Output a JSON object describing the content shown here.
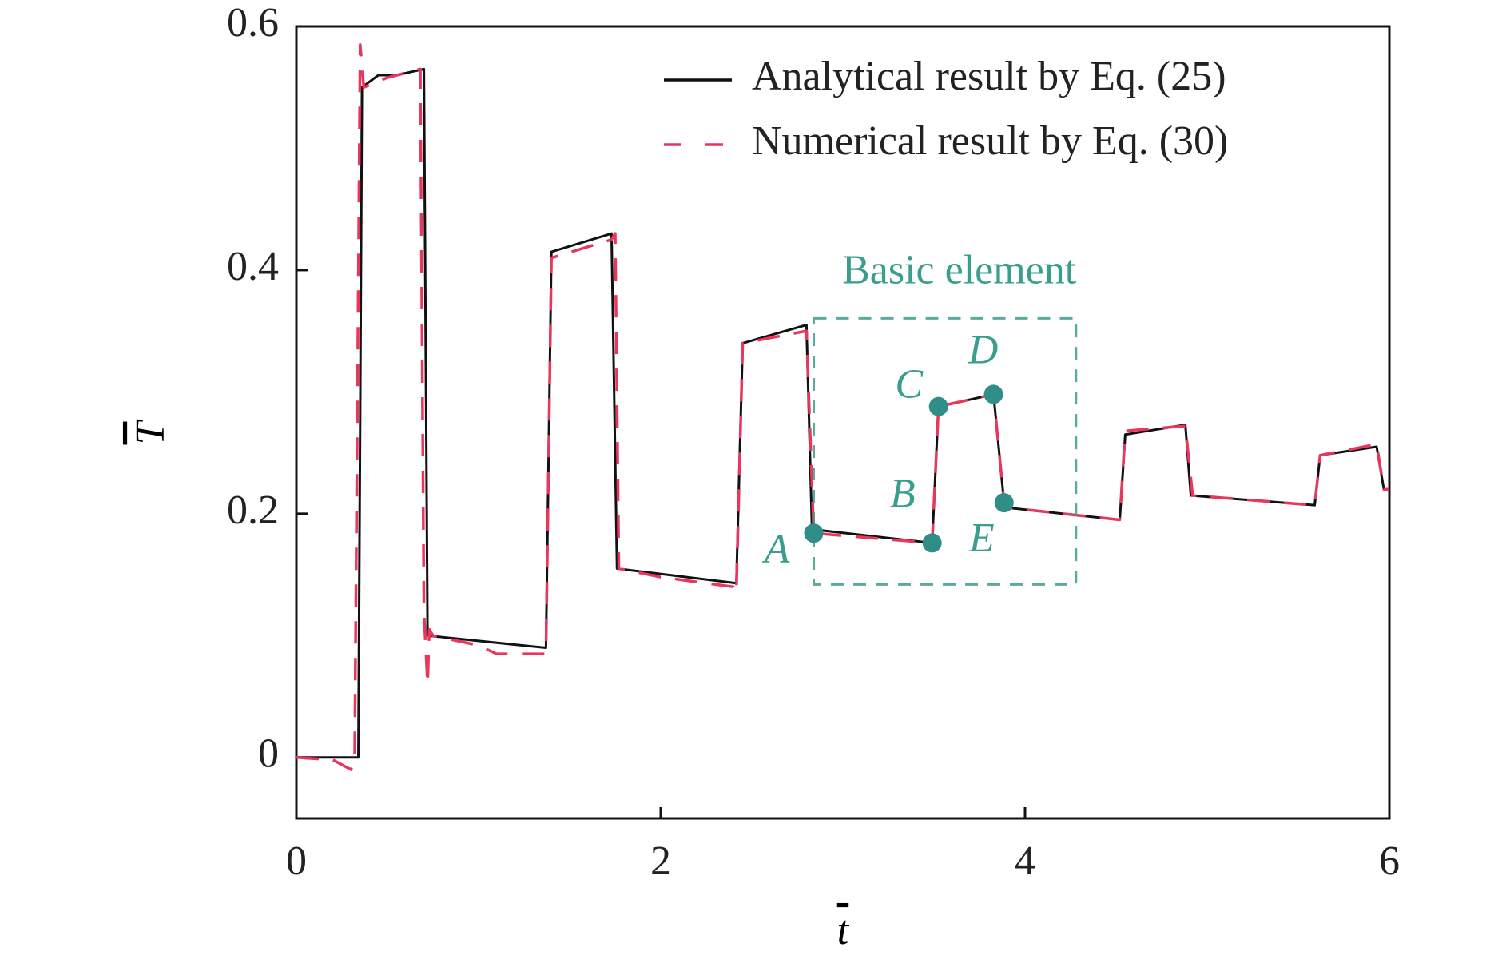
{
  "chart_data": {
    "type": "line",
    "xlabel": "t",
    "ylabel": "T",
    "xlim": [
      0,
      6
    ],
    "ylim": [
      -0.05,
      0.6
    ],
    "xticks": [
      0,
      2,
      4,
      6
    ],
    "yticks": [
      0,
      0.2,
      0.4,
      0.6
    ],
    "legend": "upper right",
    "series": [
      {
        "name": "Analytical result by Eq. (25)",
        "color": "#111111",
        "style": "solid",
        "x": [
          0,
          0.3,
          0.34,
          0.36,
          0.45,
          0.55,
          0.7,
          0.72,
          1.37,
          1.4,
          1.73,
          1.76,
          2.415,
          2.45,
          2.8,
          2.83,
          2.84,
          3.49,
          3.525,
          3.827,
          3.885,
          3.9,
          4.52,
          4.55,
          4.88,
          4.91,
          5.59,
          5.62,
          5.93,
          5.97,
          6
        ],
        "values": [
          0,
          0,
          0,
          0.55,
          0.56,
          0.56,
          0.565,
          0.1,
          0.09,
          0.415,
          0.43,
          0.155,
          0.143,
          0.34,
          0.355,
          0.19,
          0.187,
          0.176,
          0.288,
          0.298,
          0.209,
          0.205,
          0.195,
          0.265,
          0.273,
          0.215,
          0.207,
          0.248,
          0.255,
          0.22,
          0.22
        ]
      },
      {
        "name": "Numerical result by Eq. (30)",
        "color": "#e8365d",
        "style": "dashed",
        "x": [
          0,
          0.2,
          0.3,
          0.32,
          0.35,
          0.37,
          0.5,
          0.68,
          0.7,
          0.72,
          0.73,
          0.75,
          1.0,
          1.1,
          1.3,
          1.37,
          1.4,
          1.73,
          1.75,
          1.77,
          2.0,
          2.4,
          2.415,
          2.45,
          2.8,
          2.84,
          3.49,
          3.525,
          3.827,
          3.885,
          3.9,
          4.52,
          4.55,
          4.88,
          4.92,
          5.59,
          5.62,
          5.93,
          5.97,
          6
        ],
        "values": [
          0,
          -0.002,
          -0.01,
          0,
          0.585,
          0.55,
          0.558,
          0.565,
          0.12,
          0.06,
          0.105,
          0.1,
          0.092,
          0.085,
          0.085,
          0.085,
          0.41,
          0.425,
          0.43,
          0.155,
          0.148,
          0.14,
          0.135,
          0.34,
          0.35,
          0.184,
          0.176,
          0.288,
          0.298,
          0.209,
          0.205,
          0.195,
          0.268,
          0.272,
          0.215,
          0.207,
          0.248,
          0.257,
          0.22,
          0.22
        ]
      }
    ],
    "annotation": {
      "text": "Basic element",
      "color": "#3a9e8c",
      "points": [
        {
          "label": "A",
          "x": 2.84,
          "y": 0.184
        },
        {
          "label": "B",
          "x": 3.49,
          "y": 0.176
        },
        {
          "label": "C",
          "x": 3.525,
          "y": 0.288
        },
        {
          "label": "D",
          "x": 3.827,
          "y": 0.298
        },
        {
          "label": "E",
          "x": 3.885,
          "y": 0.209
        }
      ]
    }
  }
}
